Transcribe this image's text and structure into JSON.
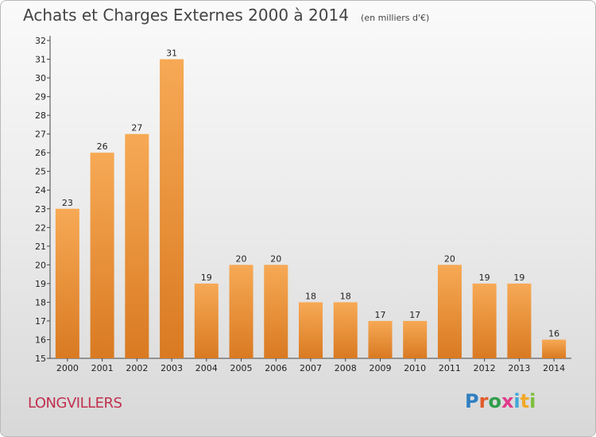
{
  "title": "Achats et Charges Externes 2000 à 2014",
  "subtitle": "(en milliers d'€)",
  "place": "LONGVILLERS",
  "logo": "Proxiti",
  "colors": {
    "bar_light": "#f7a955",
    "bar_dark": "#d97a22",
    "place": "#c0304f"
  },
  "chart_data": {
    "type": "bar",
    "categories": [
      "2000",
      "2001",
      "2002",
      "2003",
      "2004",
      "2005",
      "2006",
      "2007",
      "2008",
      "2009",
      "2010",
      "2011",
      "2012",
      "2013",
      "2014"
    ],
    "values": [
      23,
      26,
      27,
      31,
      19,
      20,
      20,
      18,
      18,
      17,
      17,
      20,
      19,
      19,
      16
    ],
    "title": "Achats et Charges Externes 2000 à 2014",
    "subtitle": "(en milliers d'€)",
    "xlabel": "",
    "ylabel": "",
    "ylim": [
      15,
      32
    ],
    "yticks": [
      15,
      16,
      17,
      18,
      19,
      20,
      21,
      22,
      23,
      24,
      25,
      26,
      27,
      28,
      29,
      30,
      31,
      32
    ],
    "grid": false,
    "legend": "none"
  }
}
